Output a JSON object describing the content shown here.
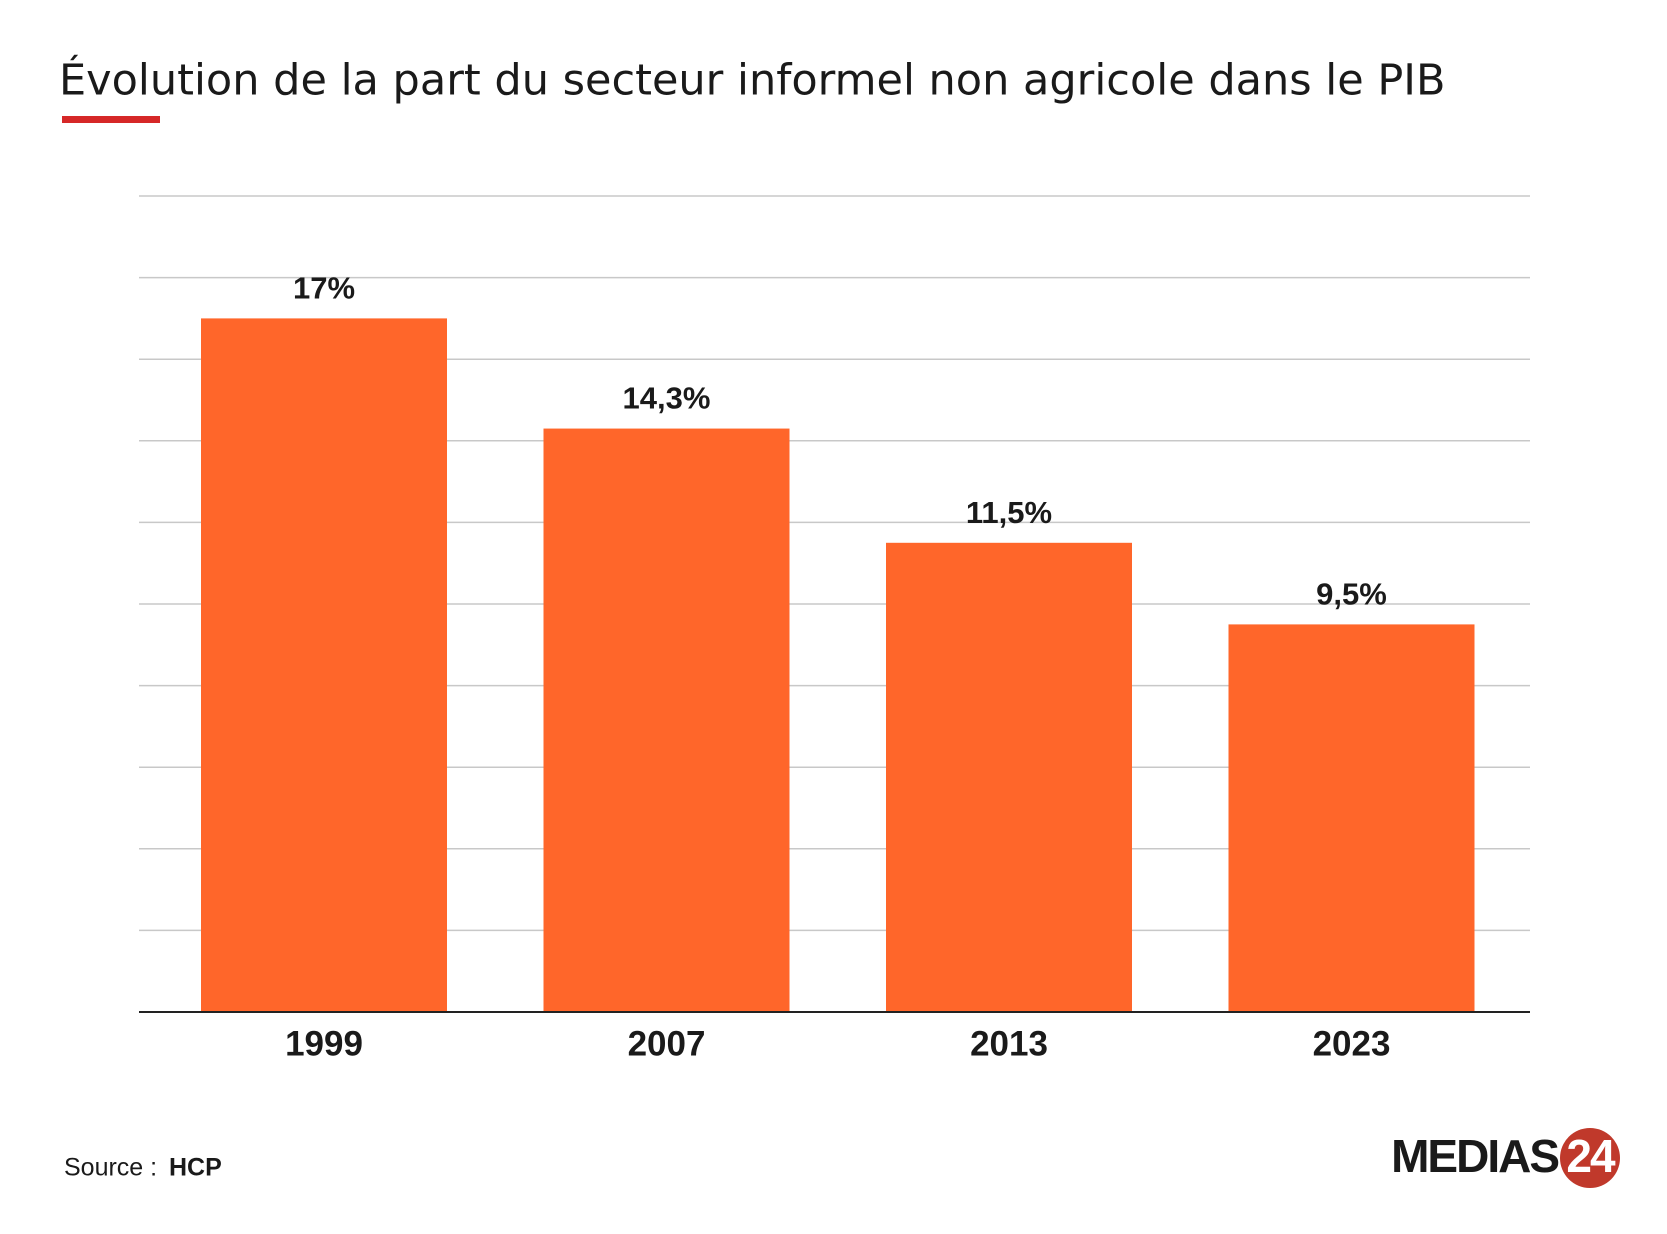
{
  "chart_data": {
    "type": "bar",
    "title": "Évolution de la part du secteur informel non agricole dans le PIB",
    "categories": [
      "1999",
      "2007",
      "2013",
      "2023"
    ],
    "values": [
      17,
      14.3,
      11.5,
      9.5
    ],
    "value_labels": [
      "17%",
      "14,3%",
      "11,5%",
      "9,5%"
    ],
    "color": "#ff662a",
    "ylim": [
      0,
      20
    ],
    "yticks": [
      0,
      2,
      4,
      6,
      8,
      10,
      12,
      14,
      16,
      18,
      20
    ],
    "grid": true,
    "source_label": "Source :",
    "source": "HCP",
    "logo": {
      "text": "MEDIAS",
      "badge": "24"
    }
  }
}
